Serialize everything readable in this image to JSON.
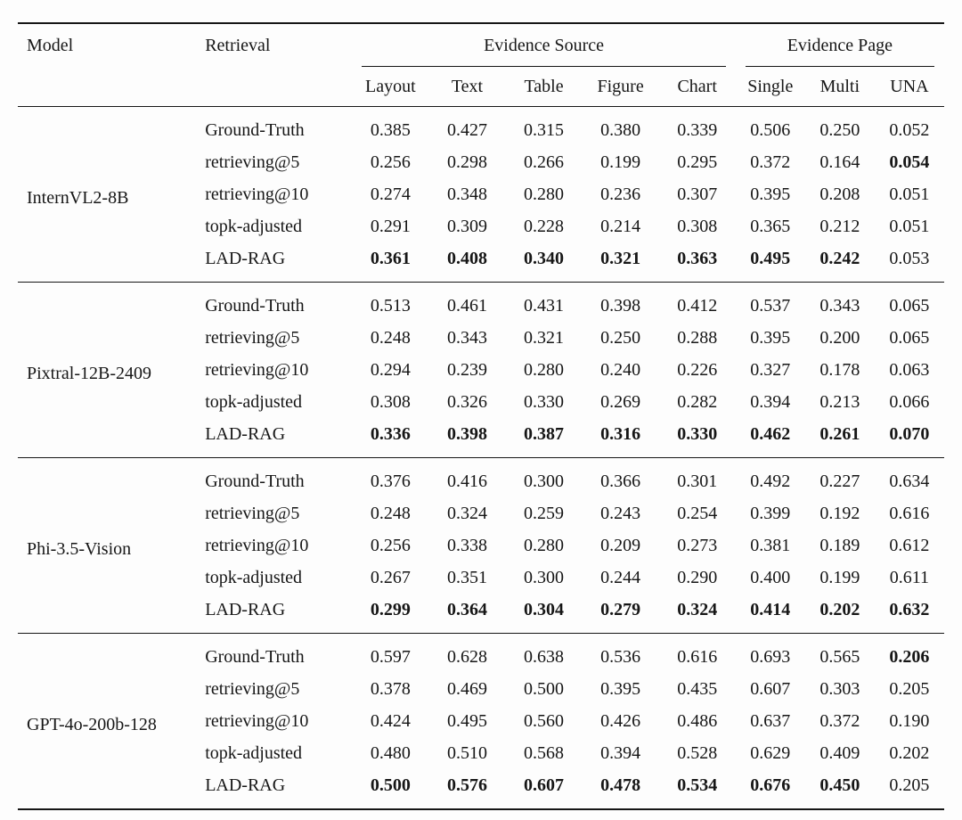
{
  "page": {
    "background_color": "#fdfdfd",
    "text_color": "#161616"
  },
  "table": {
    "headers": {
      "model": "Model",
      "retrieval": "Retrieval",
      "evidence_source": "Evidence Source",
      "evidence_page": "Evidence Page",
      "source_cols": [
        "Layout",
        "Text",
        "Table",
        "Figure",
        "Chart"
      ],
      "page_cols": [
        "Single",
        "Multi",
        "UNA"
      ]
    },
    "groups": [
      {
        "model": "InternVL2-8B",
        "rows": [
          {
            "retrieval": "Ground-Truth",
            "values": [
              "0.385",
              "0.427",
              "0.315",
              "0.380",
              "0.339",
              "0.506",
              "0.250",
              "0.052"
            ],
            "bold_cols": []
          },
          {
            "retrieval": "retrieving@5",
            "values": [
              "0.256",
              "0.298",
              "0.266",
              "0.199",
              "0.295",
              "0.372",
              "0.164",
              "0.054"
            ],
            "bold_cols": [
              7
            ]
          },
          {
            "retrieval": "retrieving@10",
            "values": [
              "0.274",
              "0.348",
              "0.280",
              "0.236",
              "0.307",
              "0.395",
              "0.208",
              "0.051"
            ],
            "bold_cols": []
          },
          {
            "retrieval": "topk-adjusted",
            "values": [
              "0.291",
              "0.309",
              "0.228",
              "0.214",
              "0.308",
              "0.365",
              "0.212",
              "0.051"
            ],
            "bold_cols": []
          },
          {
            "retrieval": "LAD-RAG",
            "values": [
              "0.361",
              "0.408",
              "0.340",
              "0.321",
              "0.363",
              "0.495",
              "0.242",
              "0.053"
            ],
            "bold_cols": [
              0,
              1,
              2,
              3,
              4,
              5,
              6
            ]
          }
        ]
      },
      {
        "model": "Pixtral-12B-2409",
        "rows": [
          {
            "retrieval": "Ground-Truth",
            "values": [
              "0.513",
              "0.461",
              "0.431",
              "0.398",
              "0.412",
              "0.537",
              "0.343",
              "0.065"
            ],
            "bold_cols": []
          },
          {
            "retrieval": "retrieving@5",
            "values": [
              "0.248",
              "0.343",
              "0.321",
              "0.250",
              "0.288",
              "0.395",
              "0.200",
              "0.065"
            ],
            "bold_cols": []
          },
          {
            "retrieval": "retrieving@10",
            "values": [
              "0.294",
              "0.239",
              "0.280",
              "0.240",
              "0.226",
              "0.327",
              "0.178",
              "0.063"
            ],
            "bold_cols": []
          },
          {
            "retrieval": "topk-adjusted",
            "values": [
              "0.308",
              "0.326",
              "0.330",
              "0.269",
              "0.282",
              "0.394",
              "0.213",
              "0.066"
            ],
            "bold_cols": []
          },
          {
            "retrieval": "LAD-RAG",
            "values": [
              "0.336",
              "0.398",
              "0.387",
              "0.316",
              "0.330",
              "0.462",
              "0.261",
              "0.070"
            ],
            "bold_cols": [
              0,
              1,
              2,
              3,
              4,
              5,
              6,
              7
            ]
          }
        ]
      },
      {
        "model": "Phi-3.5-Vision",
        "rows": [
          {
            "retrieval": "Ground-Truth",
            "values": [
              "0.376",
              "0.416",
              "0.300",
              "0.366",
              "0.301",
              "0.492",
              "0.227",
              "0.634"
            ],
            "bold_cols": []
          },
          {
            "retrieval": "retrieving@5",
            "values": [
              "0.248",
              "0.324",
              "0.259",
              "0.243",
              "0.254",
              "0.399",
              "0.192",
              "0.616"
            ],
            "bold_cols": []
          },
          {
            "retrieval": "retrieving@10",
            "values": [
              "0.256",
              "0.338",
              "0.280",
              "0.209",
              "0.273",
              "0.381",
              "0.189",
              "0.612"
            ],
            "bold_cols": []
          },
          {
            "retrieval": "topk-adjusted",
            "values": [
              "0.267",
              "0.351",
              "0.300",
              "0.244",
              "0.290",
              "0.400",
              "0.199",
              "0.611"
            ],
            "bold_cols": []
          },
          {
            "retrieval": "LAD-RAG",
            "values": [
              "0.299",
              "0.364",
              "0.304",
              "0.279",
              "0.324",
              "0.414",
              "0.202",
              "0.632"
            ],
            "bold_cols": [
              0,
              1,
              2,
              3,
              4,
              5,
              6,
              7
            ]
          }
        ]
      },
      {
        "model": "GPT-4o-200b-128",
        "rows": [
          {
            "retrieval": "Ground-Truth",
            "values": [
              "0.597",
              "0.628",
              "0.638",
              "0.536",
              "0.616",
              "0.693",
              "0.565",
              "0.206"
            ],
            "bold_cols": [
              7
            ]
          },
          {
            "retrieval": "retrieving@5",
            "values": [
              "0.378",
              "0.469",
              "0.500",
              "0.395",
              "0.435",
              "0.607",
              "0.303",
              "0.205"
            ],
            "bold_cols": []
          },
          {
            "retrieval": "retrieving@10",
            "values": [
              "0.424",
              "0.495",
              "0.560",
              "0.426",
              "0.486",
              "0.637",
              "0.372",
              "0.190"
            ],
            "bold_cols": []
          },
          {
            "retrieval": "topk-adjusted",
            "values": [
              "0.480",
              "0.510",
              "0.568",
              "0.394",
              "0.528",
              "0.629",
              "0.409",
              "0.202"
            ],
            "bold_cols": []
          },
          {
            "retrieval": "LAD-RAG",
            "values": [
              "0.500",
              "0.576",
              "0.607",
              "0.478",
              "0.534",
              "0.676",
              "0.450",
              "0.205"
            ],
            "bold_cols": [
              0,
              1,
              2,
              3,
              4,
              5,
              6
            ]
          }
        ]
      }
    ]
  }
}
